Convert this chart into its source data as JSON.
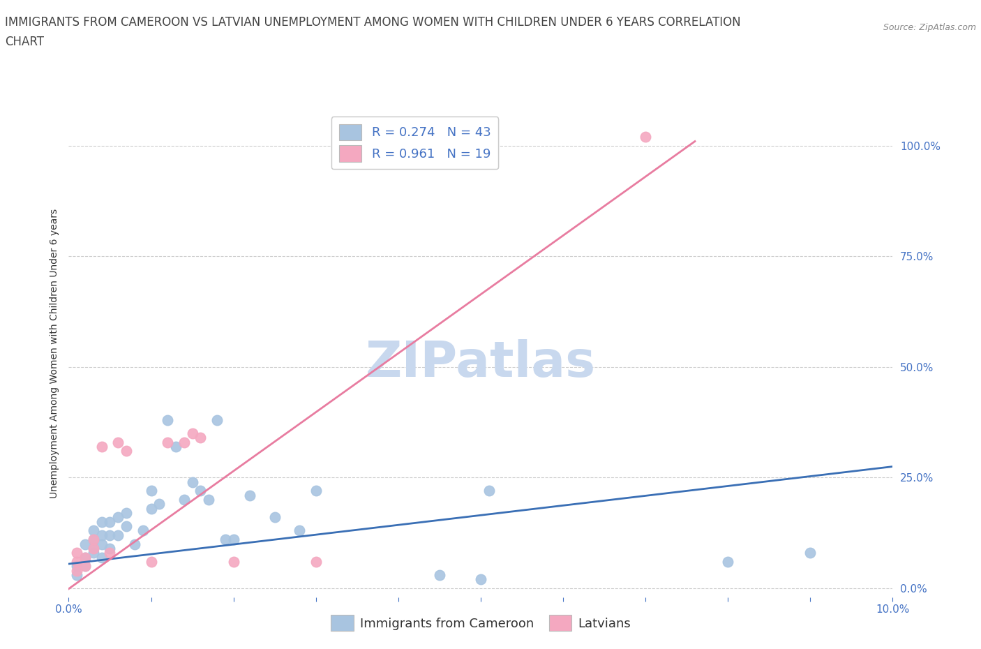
{
  "title_line1": "IMMIGRANTS FROM CAMEROON VS LATVIAN UNEMPLOYMENT AMONG WOMEN WITH CHILDREN UNDER 6 YEARS CORRELATION",
  "title_line2": "CHART",
  "source_text": "Source: ZipAtlas.com",
  "ylabel": "Unemployment Among Women with Children Under 6 years",
  "xlim": [
    0.0,
    0.1
  ],
  "ylim": [
    -0.02,
    1.08
  ],
  "yticks": [
    0.0,
    0.25,
    0.5,
    0.75,
    1.0
  ],
  "ytick_labels": [
    "0.0%",
    "25.0%",
    "50.0%",
    "75.0%",
    "100.0%"
  ],
  "R_blue": 0.274,
  "N_blue": 43,
  "R_pink": 0.961,
  "N_pink": 19,
  "blue_color": "#a8c4e0",
  "pink_color": "#f4a8c0",
  "blue_line_color": "#3a6fb5",
  "pink_line_color": "#e87ca0",
  "watermark": "ZIPatlas",
  "watermark_color": "#c8d8ee",
  "scatter_blue_x": [
    0.001,
    0.001,
    0.002,
    0.002,
    0.002,
    0.003,
    0.003,
    0.003,
    0.003,
    0.004,
    0.004,
    0.004,
    0.004,
    0.005,
    0.005,
    0.005,
    0.006,
    0.006,
    0.007,
    0.007,
    0.008,
    0.009,
    0.01,
    0.01,
    0.011,
    0.012,
    0.013,
    0.014,
    0.015,
    0.016,
    0.017,
    0.018,
    0.019,
    0.02,
    0.022,
    0.025,
    0.028,
    0.03,
    0.045,
    0.05,
    0.051,
    0.08,
    0.09
  ],
  "scatter_blue_y": [
    0.05,
    0.03,
    0.07,
    0.1,
    0.05,
    0.08,
    0.09,
    0.11,
    0.13,
    0.07,
    0.1,
    0.12,
    0.15,
    0.09,
    0.12,
    0.15,
    0.12,
    0.16,
    0.14,
    0.17,
    0.1,
    0.13,
    0.18,
    0.22,
    0.19,
    0.38,
    0.32,
    0.2,
    0.24,
    0.22,
    0.2,
    0.38,
    0.11,
    0.11,
    0.21,
    0.16,
    0.13,
    0.22,
    0.03,
    0.02,
    0.22,
    0.06,
    0.08
  ],
  "scatter_pink_x": [
    0.001,
    0.001,
    0.001,
    0.002,
    0.002,
    0.003,
    0.003,
    0.004,
    0.005,
    0.006,
    0.007,
    0.01,
    0.012,
    0.014,
    0.015,
    0.016,
    0.02,
    0.03,
    0.07
  ],
  "scatter_pink_y": [
    0.04,
    0.06,
    0.08,
    0.05,
    0.07,
    0.11,
    0.09,
    0.32,
    0.08,
    0.33,
    0.31,
    0.06,
    0.33,
    0.33,
    0.35,
    0.34,
    0.06,
    0.06,
    1.02
  ],
  "blue_trend_x": [
    0.0,
    0.1
  ],
  "blue_trend_y": [
    0.055,
    0.275
  ],
  "pink_trend_x": [
    -0.002,
    0.076
  ],
  "pink_trend_y": [
    -0.028,
    1.01
  ],
  "legend_label_blue": "Immigrants from Cameroon",
  "legend_label_pink": "Latvians",
  "title_fontsize": 12,
  "axis_label_fontsize": 10,
  "tick_fontsize": 11,
  "legend_fontsize": 13,
  "title_color": "#444444",
  "axis_color": "#4472c4",
  "tick_color": "#4472c4",
  "grid_color": "#cccccc",
  "grid_style": "--"
}
